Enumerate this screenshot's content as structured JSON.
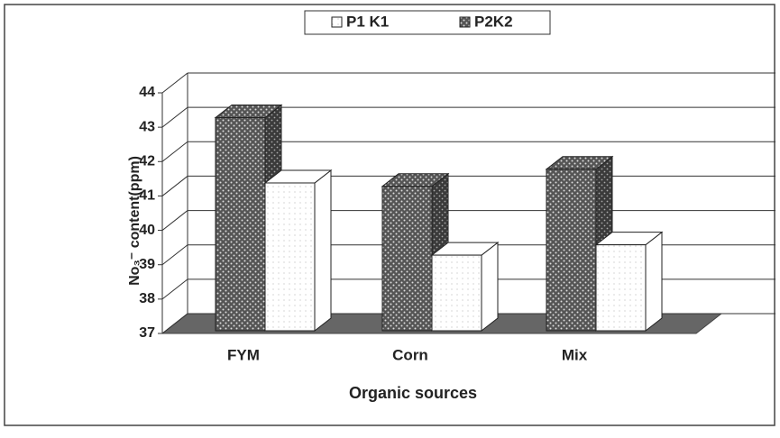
{
  "chart_data": {
    "type": "bar3d",
    "x_label": "Organic sources",
    "y_label": "No₃⁻ content(ppm)",
    "categories": [
      "FYM",
      "Corn",
      "Mix"
    ],
    "series": [
      {
        "name": "P1 K1",
        "color": "#ffffff",
        "values": [
          41.3,
          39.2,
          39.5
        ]
      },
      {
        "name": "P2K2",
        "color": "#555555",
        "values": [
          43.2,
          41.2,
          41.7
        ]
      }
    ],
    "ylim": [
      37,
      44
    ],
    "yticks": [
      37,
      38,
      39,
      40,
      41,
      42,
      43,
      44
    ],
    "grid": true,
    "legend": "top"
  }
}
